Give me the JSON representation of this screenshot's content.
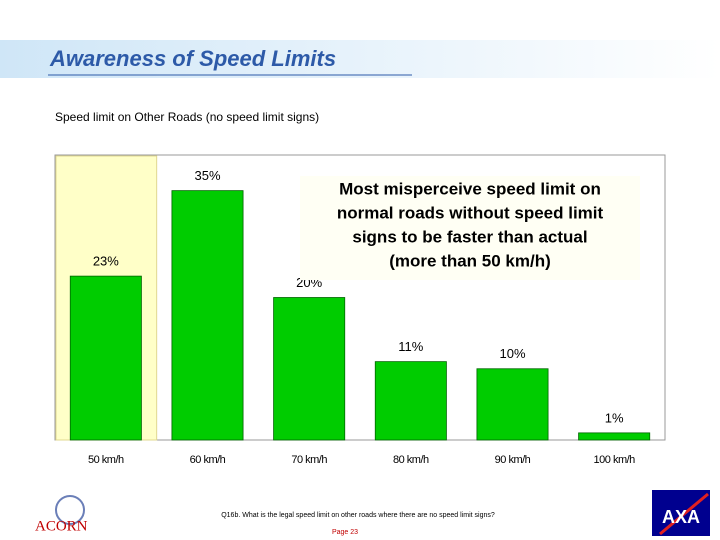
{
  "title": "Awareness of Speed Limits",
  "chart_data": {
    "type": "bar",
    "title": "Speed limit on Other Roads (no speed limit signs)",
    "categories": [
      "50 km/h",
      "60 km/h",
      "70 km/h",
      "80 km/h",
      "90 km/h",
      "100 km/h"
    ],
    "values": [
      23,
      35,
      20,
      11,
      10,
      1
    ],
    "value_labels": [
      "23%",
      "35%",
      "20%",
      "11%",
      "10%",
      "1%"
    ],
    "color": "#00cc00",
    "ylim": [
      0,
      40
    ],
    "annotation": [
      "Most misperceive  speed limit on",
      "normal roads without speed limit",
      "signs to be faster than actual",
      "(more than 50 km/h)"
    ]
  },
  "footnote": "Q16b. What is the legal speed limit on other roads where there are no speed limit signs?",
  "page": "Page 23",
  "logos": [
    "ACORN",
    "AXA"
  ]
}
